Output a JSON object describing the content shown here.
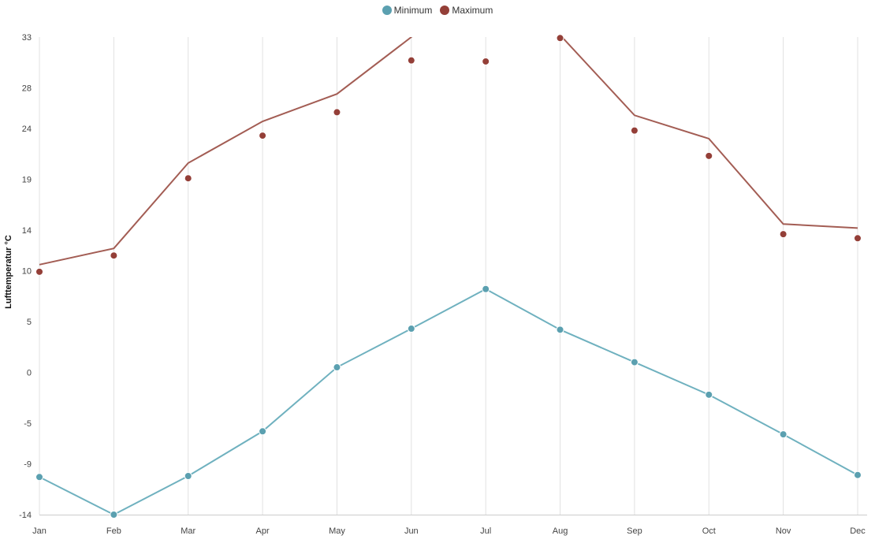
{
  "chart_data": {
    "type": "line",
    "categories": [
      "Jan",
      "Feb",
      "Mar",
      "Apr",
      "May",
      "Jun",
      "Jul",
      "Aug",
      "Sep",
      "Oct",
      "Nov",
      "Dec"
    ],
    "ylabel": "Lufttemperatur °C",
    "yticks": [
      33,
      28,
      24,
      19,
      14,
      10,
      5,
      0,
      -5,
      -9,
      -14
    ],
    "ylim": [
      -14,
      33
    ],
    "grid": "vertical",
    "legend_position": "top-center",
    "series": [
      {
        "name": "Minimum",
        "color": "#5ba0b0",
        "line_color": "#6fb1bf",
        "points": [
          -10.3,
          -14,
          -10.2,
          -5.8,
          0.5,
          4.3,
          8.2,
          4.2,
          1.0,
          -2.2,
          -6.1,
          -10.1
        ],
        "line": [
          -10.3,
          -14,
          -10.2,
          -5.8,
          0.5,
          4.3,
          8.2,
          4.2,
          1.0,
          -2.2,
          -6.1,
          -10.1
        ]
      },
      {
        "name": "Maximum",
        "color": "#943f38",
        "line_color": "#a35d54",
        "points": [
          9.9,
          11.5,
          19.1,
          23.3,
          25.6,
          30.7,
          30.6,
          32.9,
          23.8,
          21.3,
          13.6,
          13.2
        ],
        "line": [
          10.6,
          12.2,
          20.6,
          24.7,
          27.4,
          33.0,
          null,
          33.2,
          25.3,
          23.0,
          14.6,
          14.2
        ]
      }
    ]
  }
}
